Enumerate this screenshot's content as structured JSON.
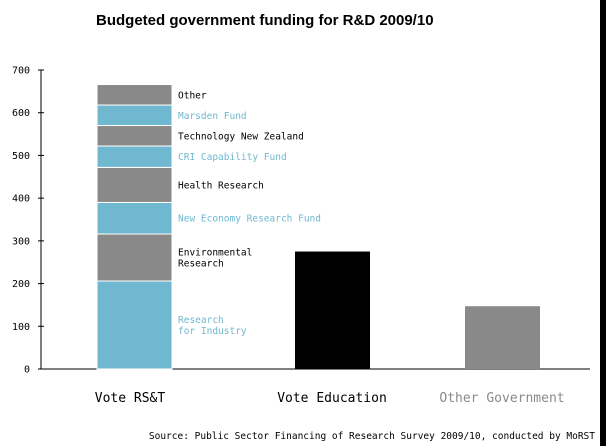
{
  "chart_data": {
    "type": "bar",
    "stacked": true,
    "title": "Budgeted government funding for R&D 2009/10",
    "source": "Source: Public Sector Financing of Research Survey 2009/10, conducted by MoRST",
    "xlabel": "",
    "ylabel": "",
    "ylim": [
      0,
      700
    ],
    "yticks": [
      "0",
      "100",
      "200",
      "300",
      "400",
      "500",
      "600",
      "700"
    ],
    "grid": false,
    "categories": [
      "Vote RS&T",
      "Vote Education",
      "Other Government"
    ],
    "category_colors": [
      "#000000",
      "#000000",
      "#8a8a8a"
    ],
    "stack": [
      {
        "name": "Research for Industry",
        "lines": [
          "Research",
          "for Industry"
        ],
        "value": 206,
        "color": "#70b8d0",
        "label_color": "#70b8d0"
      },
      {
        "name": "Environmental Research",
        "lines": [
          "Environmental",
          "Research"
        ],
        "value": 110,
        "color": "#898989",
        "label_color": "#000000"
      },
      {
        "name": "New Economy Research Fund",
        "lines": [
          "New Economy Research Fund"
        ],
        "value": 74,
        "color": "#70b8d0",
        "label_color": "#70b8d0"
      },
      {
        "name": "Health Research",
        "lines": [
          "Health Research"
        ],
        "value": 82,
        "color": "#898989",
        "label_color": "#000000"
      },
      {
        "name": "CRI Capability Fund",
        "lines": [
          "CRI Capability Fund"
        ],
        "value": 50,
        "color": "#70b8d0",
        "label_color": "#70b8d0"
      },
      {
        "name": "Technology New Zealand",
        "lines": [
          "Technology New Zealand"
        ],
        "value": 48,
        "color": "#898989",
        "label_color": "#000000"
      },
      {
        "name": "Marsden Fund",
        "lines": [
          "Marsden Fund"
        ],
        "value": 48,
        "color": "#70b8d0",
        "label_color": "#70b8d0"
      },
      {
        "name": "Other",
        "lines": [
          "Other"
        ],
        "value": 48,
        "color": "#898989",
        "label_color": "#000000"
      }
    ],
    "single_bars": [
      {
        "category": "Vote Education",
        "value": 275,
        "color": "#000000"
      },
      {
        "category": "Other Government",
        "value": 147,
        "color": "#898989"
      }
    ]
  }
}
